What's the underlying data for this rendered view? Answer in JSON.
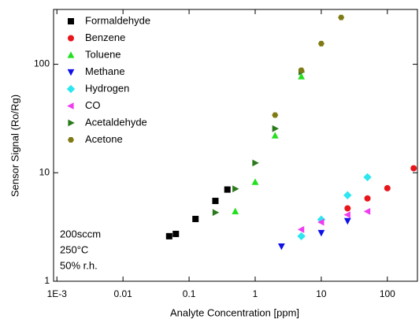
{
  "chart_data": {
    "type": "scatter",
    "xlabel": "Analyte Concentration [ppm]",
    "ylabel": "Sensor Signal (Ro/Rg)",
    "annotations": [
      "200sccm",
      "250°C",
      "50% r.h."
    ],
    "xlog": true,
    "ylog": true,
    "xlim": [
      0.00089,
      285
    ],
    "ylim": [
      1,
      320
    ],
    "xticks": [
      {
        "value": 0.001,
        "label": "1E-3"
      },
      0.01,
      0.1,
      1,
      10,
      100
    ],
    "yticks": [
      1,
      10,
      100
    ],
    "legend": "upper left",
    "series": [
      {
        "name": "Formaldehyde",
        "color": "#000000",
        "marker": "square",
        "x": [
          0.05,
          0.063,
          0.125,
          0.25,
          0.38
        ],
        "values": [
          2.6,
          2.73,
          3.75,
          5.5,
          7.0
        ]
      },
      {
        "name": "Benzene",
        "color": "#e8161b",
        "marker": "circle",
        "x": [
          25,
          50,
          100,
          250
        ],
        "values": [
          4.7,
          5.8,
          7.2,
          11
        ]
      },
      {
        "name": "Toluene",
        "color": "#22e01e",
        "marker": "triangle-up",
        "x": [
          0.5,
          1,
          2,
          5
        ],
        "values": [
          4.4,
          8.2,
          22,
          77
        ]
      },
      {
        "name": "Methane",
        "color": "#1010e8",
        "marker": "triangle-down",
        "x": [
          2.5,
          10,
          25
        ],
        "values": [
          2.1,
          2.8,
          3.6
        ]
      },
      {
        "name": "Hydrogen",
        "color": "#2de6f0",
        "marker": "diamond",
        "x": [
          5,
          10,
          25,
          50
        ],
        "values": [
          2.6,
          3.7,
          6.2,
          9.1
        ]
      },
      {
        "name": "CO",
        "color": "#f03cf0",
        "marker": "triangle-left",
        "x": [
          5,
          10,
          25,
          50
        ],
        "values": [
          3.0,
          3.5,
          4.1,
          4.4
        ]
      },
      {
        "name": "Acetaldehyde",
        "color": "#2a7a1b",
        "marker": "triangle-right",
        "x": [
          0.25,
          0.5,
          1,
          2,
          5
        ],
        "values": [
          4.3,
          7.1,
          12.3,
          25.5,
          85
        ]
      },
      {
        "name": "Acetone",
        "color": "#7f7a14",
        "marker": "hexagon",
        "x": [
          2,
          5,
          10,
          20
        ],
        "values": [
          34,
          88,
          155,
          270
        ]
      }
    ]
  }
}
